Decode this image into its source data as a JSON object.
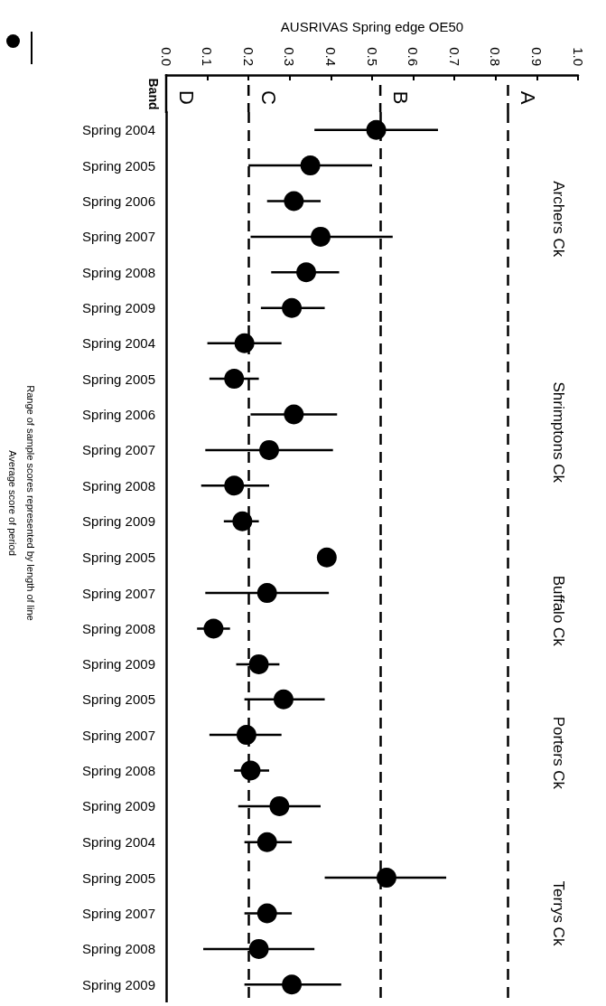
{
  "chart_data": [
    {
      "type": "scatter",
      "orientation": "horizontal",
      "xlabel": "AUSRIVAS Spring edge OE50",
      "marker": "circle",
      "color": "#000000",
      "categories": [
        "Spring 2004",
        "Spring 2005",
        "Spring 2006",
        "Spring 2007",
        "Spring 2008",
        "Spring 2009"
      ],
      "values": [
        0.51,
        0.35,
        0.31,
        0.375,
        0.34,
        0.305
      ],
      "errors": [
        [
          0.36,
          0.66
        ],
        [
          0.2,
          0.5
        ],
        [
          0.245,
          0.375
        ],
        [
          0.205,
          0.55
        ],
        [
          0.255,
          0.42
        ],
        [
          0.23,
          0.385
        ]
      ],
      "xlim": [
        0,
        1
      ],
      "xticks": [
        {
          "value": 0,
          "label": "0.0"
        },
        0.1,
        0.2,
        0.3,
        0.4,
        0.5,
        0.6,
        0.7,
        0.8,
        0.9,
        {
          "value": 1,
          "label": "1.0"
        }
      ],
      "ref_lines": [
        {
          "axis": "x",
          "value": 0.2,
          "line_style": "dashed"
        },
        {
          "axis": "x",
          "value": 0.52,
          "line_style": "dashed"
        },
        {
          "axis": "x",
          "value": 0.83,
          "line_style": "dashed"
        }
      ],
      "annotations": [
        "Archers Ck",
        "Band",
        "D",
        "C",
        "B",
        "A",
        "Range of sample scores represented by length of line",
        "Average score of period"
      ]
    },
    {
      "type": "scatter",
      "orientation": "horizontal",
      "marker": "circle",
      "color": "#000000",
      "tick_labels": "y",
      "categories": [
        "Spring 2004",
        "Spring 2005",
        "Spring 2006",
        "Spring 2007",
        "Spring 2008",
        "Spring 2009"
      ],
      "values": [
        0.19,
        0.165,
        0.31,
        0.25,
        0.165,
        0.185
      ],
      "errors": [
        [
          0.1,
          0.28
        ],
        [
          0.105,
          0.225
        ],
        [
          0.205,
          0.415
        ],
        [
          0.095,
          0.405
        ],
        [
          0.085,
          0.25
        ],
        [
          0.14,
          0.225
        ]
      ],
      "xlim": [
        0,
        1
      ],
      "ref_lines": [
        {
          "axis": "x",
          "value": 0.2,
          "line_style": "dashed"
        },
        {
          "axis": "x",
          "value": 0.52,
          "line_style": "dashed"
        },
        {
          "axis": "x",
          "value": 0.83,
          "line_style": "dashed"
        }
      ],
      "annotations": [
        "Shrimptons Ck"
      ]
    },
    {
      "type": "scatter",
      "orientation": "horizontal",
      "marker": "circle",
      "color": "#000000",
      "tick_labels": "y",
      "categories": [
        "Spring 2005",
        "Spring 2007",
        "Spring 2008",
        "Spring 2009"
      ],
      "values": [
        0.39,
        0.245,
        0.115,
        0.225
      ],
      "errors": [
        null,
        [
          0.095,
          0.395
        ],
        [
          0.075,
          0.155
        ],
        [
          0.17,
          0.275
        ]
      ],
      "xlim": [
        0,
        1
      ],
      "ref_lines": [
        {
          "axis": "x",
          "value": 0.2,
          "line_style": "dashed"
        },
        {
          "axis": "x",
          "value": 0.52,
          "line_style": "dashed"
        },
        {
          "axis": "x",
          "value": 0.83,
          "line_style": "dashed"
        }
      ],
      "annotations": [
        "Buffalo Ck"
      ]
    },
    {
      "type": "scatter",
      "orientation": "horizontal",
      "marker": "circle",
      "color": "#000000",
      "tick_labels": "y",
      "categories": [
        "Spring 2005",
        "Spring 2007",
        "Spring 2008",
        "Spring 2009"
      ],
      "values": [
        0.285,
        0.195,
        0.205,
        0.275
      ],
      "errors": [
        [
          0.19,
          0.385
        ],
        [
          0.105,
          0.28
        ],
        [
          0.165,
          0.25
        ],
        [
          0.175,
          0.375
        ]
      ],
      "xlim": [
        0,
        1
      ],
      "ref_lines": [
        {
          "axis": "x",
          "value": 0.2,
          "line_style": "dashed"
        },
        {
          "axis": "x",
          "value": 0.52,
          "line_style": "dashed"
        },
        {
          "axis": "x",
          "value": 0.83,
          "line_style": "dashed"
        }
      ],
      "annotations": [
        "Porters Ck"
      ]
    },
    {
      "type": "scatter",
      "orientation": "horizontal",
      "marker": "circle",
      "color": "#000000",
      "tick_labels": "y",
      "categories": [
        "Spring 2004",
        "Spring 2005",
        "Spring 2007",
        "Spring 2008",
        "Spring 2009"
      ],
      "values": [
        0.245,
        0.535,
        0.245,
        0.225,
        0.305
      ],
      "errors": [
        [
          0.19,
          0.305
        ],
        [
          0.385,
          0.68
        ],
        [
          0.19,
          0.305
        ],
        [
          0.09,
          0.36
        ],
        [
          0.19,
          0.425
        ]
      ],
      "xlim": [
        0,
        1
      ],
      "ref_lines": [
        {
          "axis": "x",
          "value": 0.2,
          "line_style": "dashed"
        },
        {
          "axis": "x",
          "value": 0.52,
          "line_style": "dashed"
        },
        {
          "axis": "x",
          "value": 0.83,
          "line_style": "dashed"
        }
      ],
      "annotations": [
        "Terrys Ck"
      ]
    }
  ]
}
